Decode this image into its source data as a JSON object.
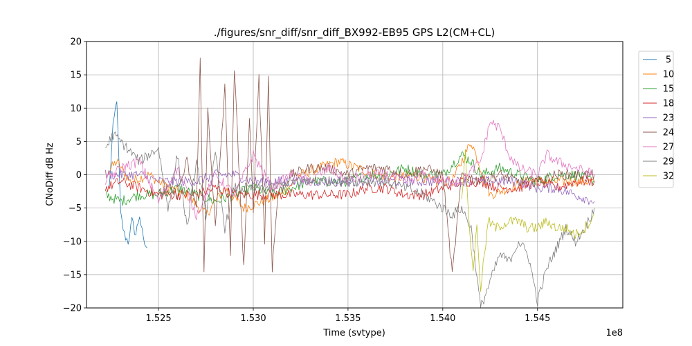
{
  "chart_data": {
    "type": "line",
    "title": "./figures/snr_diff/snr_diff_BX992-EB95 GPS  L2(CM+CL)",
    "xlabel": "Time (svtype)",
    "ylabel": "CNoDiff dB Hz",
    "x_offset_label": "1e8",
    "xlim": [
      1.5212,
      1.5495
    ],
    "ylim": [
      -20,
      20
    ],
    "x_ticks": [
      1.525,
      1.53,
      1.535,
      1.54,
      1.545
    ],
    "x_tick_labels": [
      "1.525",
      "1.530",
      "1.535",
      "1.540",
      "1.545"
    ],
    "y_ticks": [
      -20,
      -15,
      -10,
      -5,
      0,
      5,
      10,
      15,
      20
    ],
    "y_tick_labels": [
      "−20",
      "−15",
      "−10",
      "−5",
      "0",
      "5",
      "10",
      "15",
      "20"
    ],
    "grid": true,
    "legend_position": "outside-right",
    "series": [
      {
        "name": "5",
        "color": "#1f77b4",
        "x": [
          1.5224,
          1.5226,
          1.5228,
          1.523,
          1.5232,
          1.5234,
          1.5236,
          1.5238,
          1.524,
          1.5242,
          1.5244
        ],
        "y": [
          -2,
          7,
          11.5,
          -6,
          -9,
          -10,
          -7,
          -9,
          -6,
          -10,
          -11
        ]
      },
      {
        "name": "10",
        "color": "#ff7f0e",
        "x": [
          1.5222,
          1.5228,
          1.5235,
          1.5245,
          1.5255,
          1.5265,
          1.5275,
          1.5285,
          1.5295,
          1.5305,
          1.5315,
          1.5325,
          1.5335,
          1.5345,
          1.5355,
          1.5365,
          1.5375,
          1.5385,
          1.5395,
          1.5405,
          1.5415,
          1.5425,
          1.5435,
          1.5445,
          1.5455,
          1.5465,
          1.5475,
          1.548
        ],
        "y": [
          0,
          2,
          -1,
          0,
          -2,
          -3,
          -6,
          -2,
          -5,
          -4,
          -3,
          0,
          1,
          2,
          1,
          0,
          -0.5,
          0,
          -1,
          -1,
          5,
          -3,
          -2,
          -1,
          -1,
          -1,
          -1,
          -1
        ]
      },
      {
        "name": "15",
        "color": "#2ca02c",
        "x": [
          1.5222,
          1.523,
          1.524,
          1.525,
          1.526,
          1.527,
          1.528,
          1.529,
          1.53,
          1.531,
          1.532,
          1.533,
          1.534,
          1.535,
          1.536,
          1.537,
          1.538,
          1.539,
          1.54,
          1.541,
          1.5415,
          1.542,
          1.543,
          1.544,
          1.545,
          1.546,
          1.547,
          1.548
        ],
        "y": [
          -3,
          -4,
          -3,
          -3,
          -2,
          -3,
          -4,
          -3,
          -2,
          -3,
          -2,
          -1,
          -1,
          -1,
          0,
          0,
          1,
          0,
          0,
          3,
          2,
          0,
          1,
          0,
          -1,
          0,
          0,
          -1
        ]
      },
      {
        "name": "18",
        "color": "#d62728",
        "x": [
          1.5222,
          1.523,
          1.524,
          1.525,
          1.526,
          1.527,
          1.528,
          1.529,
          1.53,
          1.531,
          1.532,
          1.533,
          1.534,
          1.535,
          1.536,
          1.537,
          1.538,
          1.539,
          1.54,
          1.541,
          1.542,
          1.543,
          1.544,
          1.545,
          1.546,
          1.547,
          1.548
        ],
        "y": [
          -2,
          -1,
          -2,
          -3,
          -3,
          -3,
          -2,
          -3,
          -3,
          -3,
          -3,
          -3,
          -3,
          -3,
          -2,
          -2,
          -3,
          -3,
          -2,
          -1,
          -1,
          -2,
          -2,
          -1,
          -2,
          -1,
          -1
        ]
      },
      {
        "name": "23",
        "color": "#9467bd",
        "x": [
          1.5222,
          1.523,
          1.524,
          1.525,
          1.526,
          1.527,
          1.528,
          1.529,
          1.53,
          1.531,
          1.532,
          1.533,
          1.534,
          1.535,
          1.536,
          1.537,
          1.538,
          1.539,
          1.54,
          1.541,
          1.542,
          1.543,
          1.544,
          1.545,
          1.546,
          1.547,
          1.548
        ],
        "y": [
          0,
          0,
          0,
          -1,
          -1,
          -1,
          0,
          0,
          -1,
          -1,
          -1,
          -1,
          -1,
          -1,
          -1,
          -1,
          -1,
          -1,
          -1,
          -1,
          -1,
          -1,
          -1,
          -2,
          -2,
          -3,
          -4
        ]
      },
      {
        "name": "24",
        "color": "#8c564b",
        "x": [
          1.525,
          1.5255,
          1.526,
          1.5265,
          1.527,
          1.5272,
          1.5274,
          1.5276,
          1.528,
          1.5285,
          1.5288,
          1.529,
          1.5295,
          1.5298,
          1.53,
          1.5303,
          1.5306,
          1.5308,
          1.531,
          1.5313,
          1.532,
          1.533,
          1.534,
          1.535,
          1.536,
          1.537,
          1.538,
          1.539,
          1.54,
          1.5405,
          1.541,
          1.542,
          1.543,
          1.544,
          1.545,
          1.546,
          1.547,
          1.548
        ],
        "y": [
          -3,
          -2,
          -3,
          2,
          -5,
          17,
          -15,
          10,
          -8,
          13,
          -12,
          16,
          -14,
          8,
          -5,
          15,
          -10,
          15,
          -14,
          -3,
          0,
          1,
          1,
          0,
          1,
          1,
          0,
          1,
          0,
          -15,
          0,
          -1,
          0,
          -1,
          -1,
          0,
          0,
          0
        ]
      },
      {
        "name": "27",
        "color": "#e377c2",
        "x": [
          1.5222,
          1.523,
          1.524,
          1.525,
          1.526,
          1.527,
          1.528,
          1.529,
          1.53,
          1.531,
          1.532,
          1.533,
          1.534,
          1.535,
          1.536,
          1.537,
          1.538,
          1.539,
          1.54,
          1.541,
          1.542,
          1.5425,
          1.543,
          1.5435,
          1.544,
          1.545,
          1.5455,
          1.546,
          1.547,
          1.548
        ],
        "y": [
          -1,
          1,
          2,
          -4,
          1,
          -6,
          0,
          -3,
          3,
          -2,
          0,
          -1,
          1,
          -1,
          0,
          0,
          -1,
          0,
          -1,
          -1,
          2,
          8,
          7,
          3,
          1,
          0,
          3,
          2,
          1,
          0
        ]
      },
      {
        "name": "29",
        "color": "#7f7f7f",
        "x": [
          1.5222,
          1.5226,
          1.523,
          1.524,
          1.525,
          1.5255,
          1.526,
          1.5265,
          1.527,
          1.5275,
          1.528,
          1.5285,
          1.529,
          1.53,
          1.531,
          1.532,
          1.533,
          1.534,
          1.535,
          1.536,
          1.537,
          1.538,
          1.539,
          1.54,
          1.5405,
          1.541,
          1.5415,
          1.542,
          1.5425,
          1.543,
          1.5435,
          1.544,
          1.5445,
          1.545,
          1.5455,
          1.546,
          1.5465,
          1.547,
          1.5475,
          1.548
        ],
        "y": [
          4,
          6,
          5,
          2,
          4,
          -5,
          3,
          -8,
          2,
          -6,
          3,
          -8,
          -2,
          -2,
          -2,
          -1,
          -1,
          -1,
          -1,
          -1,
          -1,
          -2,
          -3,
          -5,
          -6,
          -5,
          -8,
          -20,
          -16,
          -12,
          -13,
          -10,
          -12,
          -19,
          -14,
          -11,
          -8,
          -10,
          -8,
          -5
        ]
      },
      {
        "name": "32",
        "color": "#bcbd22",
        "x": [
          1.541,
          1.5412,
          1.5414,
          1.5416,
          1.5418,
          1.542,
          1.5422,
          1.5424,
          1.5428,
          1.5435,
          1.544,
          1.5445,
          1.545,
          1.5455,
          1.546,
          1.5465,
          1.547,
          1.5475,
          1.548
        ],
        "y": [
          -3,
          3,
          -8,
          -14,
          -8,
          -17,
          -12,
          -7,
          -8,
          -7,
          -7,
          -8,
          -8,
          -7,
          -8,
          -8,
          -9,
          -8,
          -6
        ]
      }
    ]
  }
}
